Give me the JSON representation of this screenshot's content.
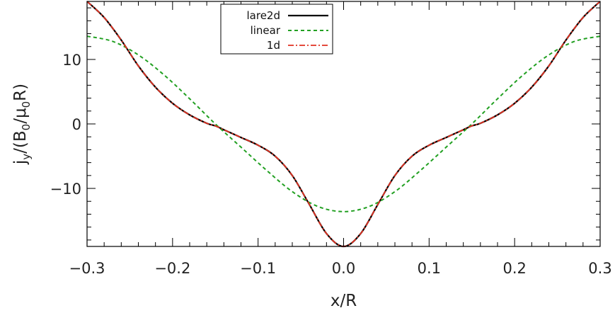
{
  "chart_data": {
    "type": "line",
    "title": "",
    "xlabel": "x/R",
    "ylabel": {
      "prefix": "j",
      "prefix_sub": "y",
      "mid": "/(B",
      "mid_sub": "0",
      "mu": "/μ",
      "mu_sub": "0",
      "suffix": "R)"
    },
    "xlim": [
      -0.3,
      0.3
    ],
    "ylim": [
      -19,
      19
    ],
    "xticks": [
      -0.3,
      -0.2,
      -0.1,
      0.0,
      0.1,
      0.2,
      0.3
    ],
    "xtick_labels": [
      "−0.3",
      "−0.2",
      "−0.1",
      "0.0",
      "0.1",
      "0.2",
      "0.3"
    ],
    "yticks": [
      -10,
      0,
      10
    ],
    "ytick_labels": [
      "−10",
      "0",
      "10"
    ],
    "grid": false,
    "legend_position": "top-center",
    "series": [
      {
        "name": "lare2d",
        "color": "#000000",
        "style": "solid",
        "x": [
          0,
          0.02,
          0.04,
          0.06,
          0.08,
          0.1,
          0.12,
          0.14,
          0.15,
          0.16,
          0.18,
          0.2,
          0.22,
          0.24,
          0.26,
          0.28,
          0.3
        ],
        "y": [
          -19,
          -17,
          -12.5,
          -8,
          -5,
          -3.3,
          -2.1,
          -0.9,
          -0.3,
          0.1,
          1.4,
          3.2,
          5.7,
          9,
          13,
          16.5,
          19
        ]
      },
      {
        "name": "linear",
        "color": "#22a022",
        "style": "dashed",
        "x": [
          0,
          0.03,
          0.06,
          0.09,
          0.12,
          0.15,
          0.18,
          0.21,
          0.24,
          0.27,
          0.3
        ],
        "y": [
          -13.6,
          -12.8,
          -10.5,
          -7.2,
          -3.6,
          0,
          3.9,
          7.6,
          10.7,
          12.8,
          13.6
        ]
      },
      {
        "name": "1d",
        "color": "#e03020",
        "style": "dashdot",
        "x": [
          0,
          0.02,
          0.04,
          0.06,
          0.08,
          0.1,
          0.12,
          0.14,
          0.15,
          0.16,
          0.18,
          0.2,
          0.22,
          0.24,
          0.26,
          0.28,
          0.3
        ],
        "y": [
          -19,
          -17,
          -12.5,
          -8,
          -5,
          -3.3,
          -2.1,
          -0.9,
          -0.3,
          0.1,
          1.4,
          3.2,
          5.7,
          9,
          13,
          16.5,
          19
        ]
      }
    ]
  }
}
